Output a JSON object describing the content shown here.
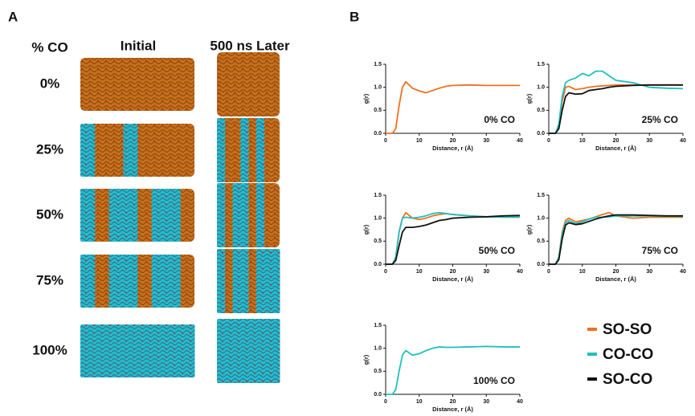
{
  "panel_a": {
    "label": "A",
    "header": "% CO",
    "columns": [
      "Initial",
      "500 ns Later"
    ],
    "rows": [
      "0%",
      "25%",
      "50%",
      "75%",
      "100%"
    ]
  },
  "panel_b": {
    "label": "B"
  },
  "chart_data": [
    {
      "type": "line",
      "annotation": "0% CO",
      "xlabel": "Distance, r (Å)",
      "ylabel": "g(r)",
      "x": [
        0,
        2,
        3,
        4,
        5,
        6,
        8,
        10,
        12,
        14,
        16,
        18,
        20,
        25,
        30,
        35,
        40
      ],
      "xlim": [
        0,
        40
      ],
      "xticks": [
        0,
        10,
        20,
        30,
        40
      ],
      "ylim": [
        0,
        1.5
      ],
      "yticks": [
        {
          "value": 0,
          "label": "0.0"
        },
        0.5,
        {
          "value": 1,
          "label": "1.0"
        },
        1.5
      ],
      "series": [
        {
          "name": "SO-SO",
          "color": "#f07020",
          "values": [
            0,
            0,
            0.1,
            0.6,
            1.0,
            1.12,
            0.98,
            0.92,
            0.88,
            0.93,
            0.98,
            1.02,
            1.04,
            1.05,
            1.04,
            1.04,
            1.04
          ]
        }
      ]
    },
    {
      "type": "line",
      "annotation": "25% CO",
      "xlabel": "Distance, r (Å)",
      "ylabel": "g(r)",
      "x": [
        0,
        2,
        3,
        4,
        5,
        6,
        8,
        10,
        12,
        14,
        16,
        18,
        20,
        25,
        30,
        35,
        40
      ],
      "xlim": [
        0,
        40
      ],
      "xticks": [
        0,
        10,
        20,
        30,
        40
      ],
      "ylim": [
        0,
        1.5
      ],
      "yticks": [
        {
          "value": 0,
          "label": "0.0"
        },
        0.5,
        {
          "value": 1,
          "label": "1.0"
        },
        1.5
      ],
      "series": [
        {
          "name": "SO-SO",
          "color": "#f07020",
          "values": [
            0,
            0,
            0.15,
            0.7,
            1.0,
            1.02,
            0.95,
            0.97,
            1.0,
            1.02,
            1.03,
            1.04,
            1.05,
            1.05,
            1.05,
            1.05,
            1.05
          ]
        },
        {
          "name": "CO-CO",
          "color": "#1fbfc0",
          "values": [
            0,
            0,
            0.2,
            0.8,
            1.1,
            1.15,
            1.2,
            1.3,
            1.25,
            1.35,
            1.35,
            1.25,
            1.15,
            1.1,
            1.0,
            0.98,
            0.97
          ]
        },
        {
          "name": "SO-CO",
          "color": "#111111",
          "values": [
            0,
            0,
            0.1,
            0.5,
            0.8,
            0.88,
            0.85,
            0.86,
            0.93,
            0.95,
            0.97,
            1.0,
            1.02,
            1.04,
            1.05,
            1.05,
            1.05
          ]
        }
      ]
    },
    {
      "type": "line",
      "annotation": "50% CO",
      "xlabel": "Distance, r (Å)",
      "ylabel": "g(r)",
      "x": [
        0,
        2,
        3,
        4,
        5,
        6,
        8,
        10,
        12,
        14,
        16,
        18,
        20,
        25,
        30,
        35,
        40
      ],
      "xlim": [
        0,
        40
      ],
      "xticks": [
        0,
        10,
        20,
        30,
        40
      ],
      "ylim": [
        0,
        1.5
      ],
      "yticks": [
        {
          "value": 0,
          "label": "0.0"
        },
        0.5,
        {
          "value": 1,
          "label": "1.0"
        },
        1.5
      ],
      "series": [
        {
          "name": "SO-SO",
          "color": "#f07020",
          "values": [
            0,
            0,
            0.15,
            0.7,
            1.0,
            1.12,
            1.0,
            0.97,
            1.0,
            1.05,
            1.08,
            1.1,
            1.08,
            1.05,
            1.03,
            1.03,
            1.03
          ]
        },
        {
          "name": "CO-CO",
          "color": "#1fbfc0",
          "values": [
            0,
            0,
            0.15,
            0.7,
            1.0,
            1.02,
            1.0,
            1.02,
            1.05,
            1.1,
            1.12,
            1.1,
            1.08,
            1.05,
            1.03,
            1.02,
            1.02
          ]
        },
        {
          "name": "SO-CO",
          "color": "#111111",
          "values": [
            0,
            0,
            0.08,
            0.4,
            0.7,
            0.8,
            0.8,
            0.82,
            0.85,
            0.9,
            0.95,
            0.97,
            1.0,
            1.02,
            1.03,
            1.05,
            1.06
          ]
        }
      ]
    },
    {
      "type": "line",
      "annotation": "75% CO",
      "xlabel": "Distance, r (Å)",
      "ylabel": "g(r)",
      "x": [
        0,
        2,
        3,
        4,
        5,
        6,
        8,
        10,
        12,
        14,
        16,
        18,
        20,
        25,
        30,
        35,
        40
      ],
      "xlim": [
        0,
        40
      ],
      "xticks": [
        0,
        10,
        20,
        30,
        40
      ],
      "ylim": [
        0,
        1.5
      ],
      "yticks": [
        {
          "value": 0,
          "label": "0.0"
        },
        0.5,
        {
          "value": 1,
          "label": "1.0"
        },
        1.5
      ],
      "series": [
        {
          "name": "SO-SO",
          "color": "#f07020",
          "values": [
            0,
            0,
            0.15,
            0.7,
            0.95,
            1.0,
            0.92,
            0.95,
            0.98,
            1.03,
            1.08,
            1.12,
            1.05,
            1.0,
            1.02,
            1.02,
            1.02
          ]
        },
        {
          "name": "CO-CO",
          "color": "#1fbfc0",
          "values": [
            0,
            0,
            0.15,
            0.65,
            0.9,
            0.95,
            0.88,
            0.92,
            0.98,
            1.02,
            1.02,
            1.03,
            1.05,
            1.05,
            1.05,
            1.04,
            1.04
          ]
        },
        {
          "name": "SO-CO",
          "color": "#111111",
          "values": [
            0,
            0,
            0.1,
            0.55,
            0.85,
            0.9,
            0.86,
            0.88,
            0.93,
            0.98,
            1.02,
            1.05,
            1.07,
            1.07,
            1.06,
            1.05,
            1.05
          ]
        }
      ]
    },
    {
      "type": "line",
      "annotation": "100% CO",
      "xlabel": "Distance, r (Å)",
      "ylabel": "g(r)",
      "x": [
        0,
        2,
        3,
        4,
        5,
        6,
        8,
        10,
        12,
        14,
        16,
        18,
        20,
        25,
        30,
        35,
        40
      ],
      "xlim": [
        0,
        40
      ],
      "xticks": [
        0,
        10,
        20,
        30,
        40
      ],
      "ylim": [
        0,
        1.5
      ],
      "yticks": [
        {
          "value": 0,
          "label": "0.0"
        },
        0.5,
        {
          "value": 1,
          "label": "1.0"
        },
        1.5
      ],
      "series": [
        {
          "name": "CO-CO",
          "color": "#1fbfc0",
          "values": [
            0,
            0,
            0.1,
            0.5,
            0.85,
            0.95,
            0.85,
            0.88,
            0.95,
            1.0,
            1.03,
            1.02,
            1.02,
            1.03,
            1.04,
            1.03,
            1.03
          ]
        }
      ]
    }
  ]
}
